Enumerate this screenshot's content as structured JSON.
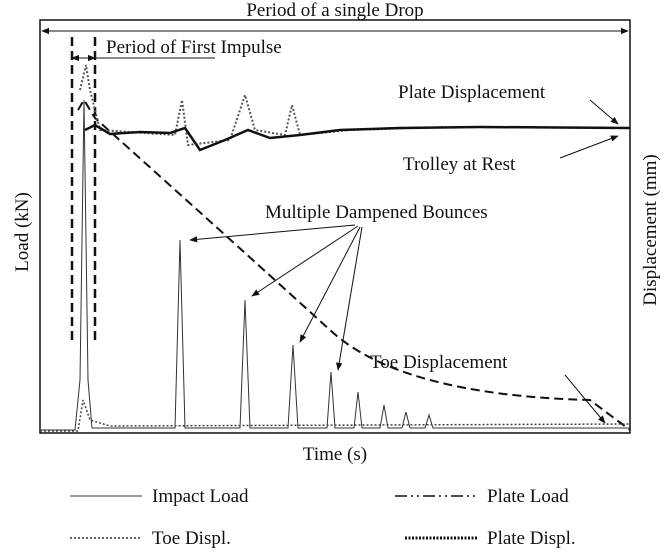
{
  "title": "Period of a single Drop",
  "subtitle": "Period of First Impulse",
  "y_label": "Load (kN)",
  "y2_label": "Displacement (mm)",
  "x_label": "Time (s)",
  "annotations": [
    "Plate Displacement",
    "Trolley at Rest",
    "Multiple Dampened Bounces",
    "Toe Displacement"
  ],
  "legend": [
    "Impact Load",
    "Plate Load",
    "Toe Displ.",
    "Plate Displ."
  ]
}
